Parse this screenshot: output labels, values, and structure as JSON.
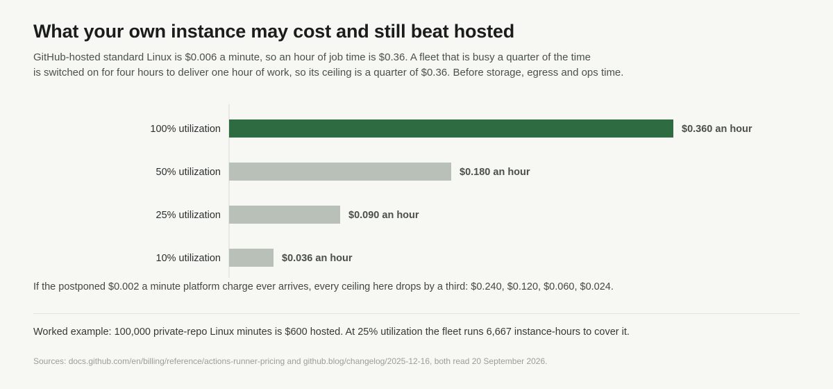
{
  "title": "What your own instance may cost and still beat hosted",
  "subtitle_lines": [
    "GitHub-hosted standard Linux is $0.006 a minute, so an hour of job time is $0.36. A fleet that is busy a quarter of the time",
    "is switched on for four hours to deliver one hour of work, so its ceiling is a quarter of $0.36. Before storage, egress and ops time."
  ],
  "chart_data": {
    "type": "bar",
    "orientation": "horizontal",
    "categories": [
      "100% utilization",
      "50% utilization",
      "25% utilization",
      "10% utilization"
    ],
    "values": [
      0.36,
      0.18,
      0.09,
      0.036
    ],
    "value_labels": [
      "$0.360 an hour",
      "$0.180 an hour",
      "$0.090 an hour",
      "$0.036 an hour"
    ],
    "highlight_index": 0,
    "xlim": [
      0,
      0.36
    ],
    "grid": false,
    "colors": {
      "highlight": "#2e6b40",
      "default": "#b9c0b7",
      "axis": "#dedfd9"
    }
  },
  "footnote": "If the postponed $0.002 a minute platform charge ever arrives, every ceiling here drops by a third: $0.240, $0.120, $0.060, $0.024.",
  "example": "Worked example: 100,000 private-repo Linux minutes is $600 hosted. At 25% utilization the fleet runs 6,667 instance-hours to cover it.",
  "sources": "Sources: docs.github.com/en/billing/reference/actions-runner-pricing and github.blog/changelog/2025-12-16, both read 20 September 2026."
}
